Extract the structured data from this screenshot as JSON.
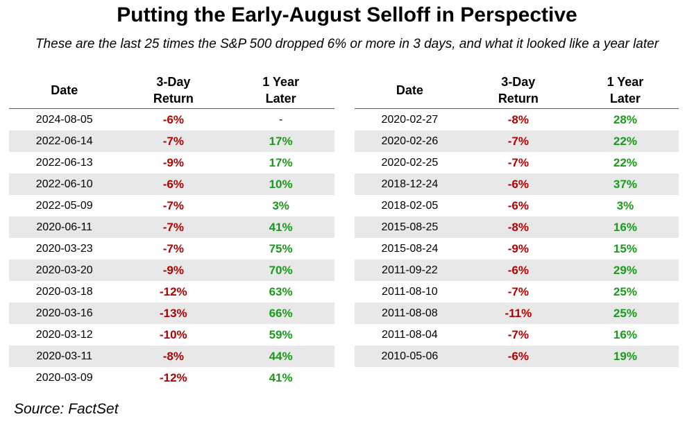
{
  "title": "Putting the Early-August Selloff in Perspective",
  "subtitle": "These are the last 25 times the S&P 500 dropped 6% or more in 3 days, and what it looked like a year later",
  "source": "Source: FactSet",
  "colors": {
    "negative": "#b00000",
    "positive": "#1a9a1a",
    "stripe": "#e8e8e8"
  },
  "chart_data": {
    "type": "table",
    "columns": [
      "Date",
      "3-Day Return",
      "1 Year Later"
    ],
    "header_lines": [
      [
        "Date"
      ],
      [
        "3-Day",
        "Return"
      ],
      [
        "1 Year",
        "Later"
      ]
    ],
    "rows": [
      [
        "2024-08-05",
        "-6%",
        "-"
      ],
      [
        "2022-06-14",
        "-7%",
        "17%"
      ],
      [
        "2022-06-13",
        "-9%",
        "17%"
      ],
      [
        "2022-06-10",
        "-6%",
        "10%"
      ],
      [
        "2022-05-09",
        "-7%",
        "3%"
      ],
      [
        "2020-06-11",
        "-7%",
        "41%"
      ],
      [
        "2020-03-23",
        "-7%",
        "75%"
      ],
      [
        "2020-03-20",
        "-9%",
        "70%"
      ],
      [
        "2020-03-18",
        "-12%",
        "63%"
      ],
      [
        "2020-03-16",
        "-13%",
        "66%"
      ],
      [
        "2020-03-12",
        "-10%",
        "59%"
      ],
      [
        "2020-03-11",
        "-8%",
        "44%"
      ],
      [
        "2020-03-09",
        "-12%",
        "41%"
      ],
      [
        "2020-02-27",
        "-8%",
        "28%"
      ],
      [
        "2020-02-26",
        "-7%",
        "22%"
      ],
      [
        "2020-02-25",
        "-7%",
        "22%"
      ],
      [
        "2018-12-24",
        "-6%",
        "37%"
      ],
      [
        "2018-02-05",
        "-6%",
        "3%"
      ],
      [
        "2015-08-25",
        "-8%",
        "16%"
      ],
      [
        "2015-08-24",
        "-9%",
        "15%"
      ],
      [
        "2011-09-22",
        "-6%",
        "29%"
      ],
      [
        "2011-08-10",
        "-7%",
        "25%"
      ],
      [
        "2011-08-08",
        "-11%",
        "25%"
      ],
      [
        "2011-08-04",
        "-7%",
        "16%"
      ],
      [
        "2010-05-06",
        "-6%",
        "19%"
      ]
    ],
    "split_after": 13
  }
}
